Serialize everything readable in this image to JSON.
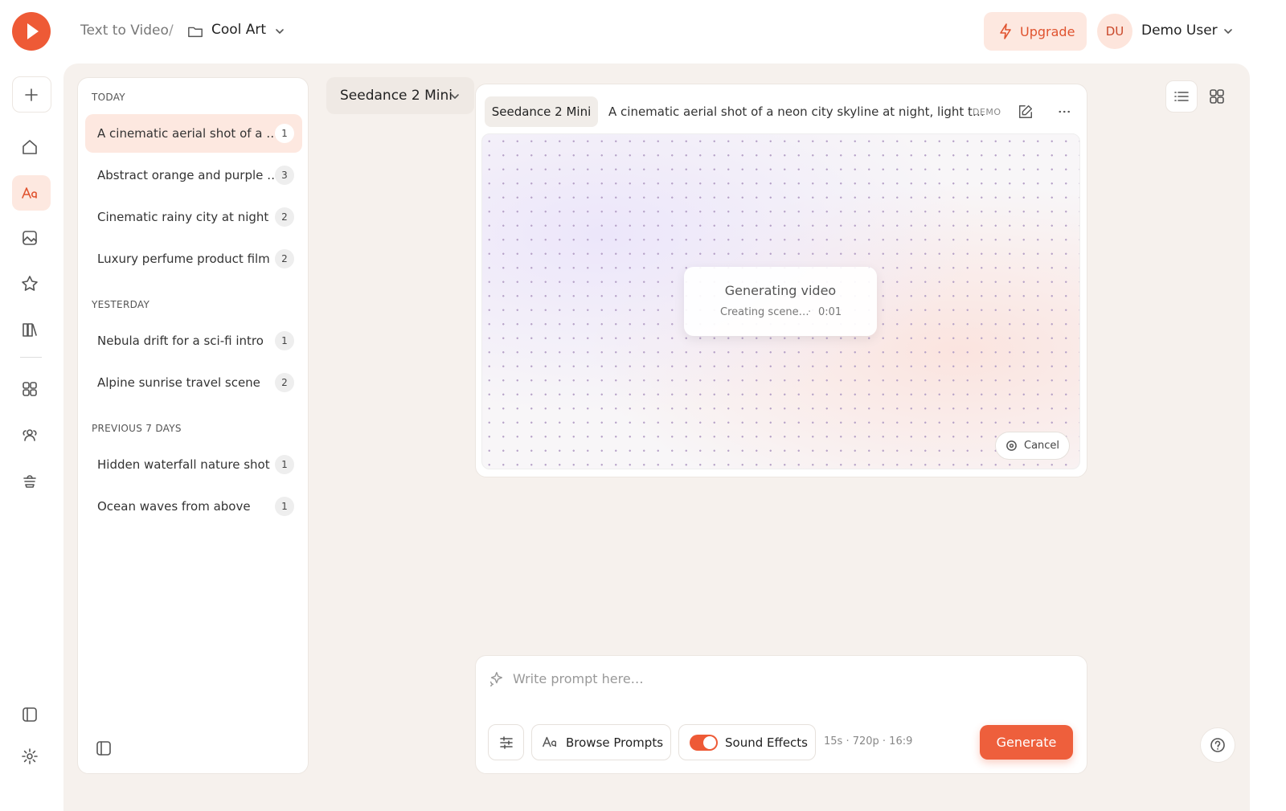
{
  "header": {
    "breadcrumb": "Text to Video",
    "separator": "/",
    "project": "Cool Art",
    "upgrade": "Upgrade",
    "avatar": "DU",
    "user": "Demo User"
  },
  "history": {
    "groups": [
      {
        "label": "TODAY",
        "items": [
          {
            "title": "A cinematic aerial shot of a …",
            "count": 1
          },
          {
            "title": "Abstract orange and purple …",
            "count": 3
          },
          {
            "title": "Cinematic rainy city at night",
            "count": 2
          },
          {
            "title": "Luxury perfume product film",
            "count": 2
          }
        ]
      },
      {
        "label": "YESTERDAY",
        "items": [
          {
            "title": "Nebula drift for a sci-fi intro",
            "count": 1
          },
          {
            "title": "Alpine sunrise travel scene",
            "count": 2
          }
        ]
      },
      {
        "label": "PREVIOUS 7 DAYS",
        "items": [
          {
            "title": "Hidden waterfall nature shot",
            "count": 1
          },
          {
            "title": "Ocean waves from above",
            "count": 1
          }
        ]
      }
    ]
  },
  "model_selector": "Seedance 2 Mini",
  "job": {
    "model": "Seedance 2 Mini",
    "prompt": "A cinematic aerial shot of a neon city skyline at night, light t…",
    "badge": "DEMO",
    "status": "Generating video",
    "stage": "Creating scene…",
    "dot": "·",
    "time": "0:01",
    "cancel": "Cancel"
  },
  "composer": {
    "placeholder": "Write prompt here…",
    "browse": "Browse Prompts",
    "sound": "Sound Effects",
    "settings": "15s · 720p · 16:9",
    "generate": "Generate"
  }
}
